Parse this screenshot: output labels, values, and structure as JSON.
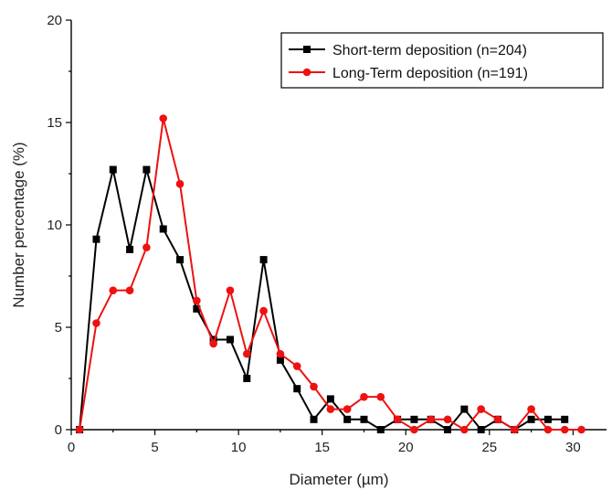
{
  "chart_data": {
    "type": "line",
    "title": "",
    "xlabel": "Diameter (µm)",
    "ylabel": "Number percentage (%)",
    "xlim": [
      0,
      32
    ],
    "ylim": [
      0,
      20
    ],
    "xticks": [
      0,
      5,
      10,
      15,
      20,
      25,
      30
    ],
    "yticks": [
      0,
      5,
      10,
      15,
      20
    ],
    "legend_position": "top-right",
    "grid": false,
    "series": [
      {
        "name": "Short-term deposition (n=204)",
        "color": "#000000",
        "marker": "square",
        "x": [
          0.5,
          1.5,
          2.5,
          3.5,
          4.5,
          5.5,
          6.5,
          7.5,
          8.5,
          9.5,
          10.5,
          11.5,
          12.5,
          13.5,
          14.5,
          15.5,
          16.5,
          17.5,
          18.5,
          19.5,
          20.5,
          21.5,
          22.5,
          23.5,
          24.5,
          25.5,
          26.5,
          27.5,
          28.5,
          29.5
        ],
        "y": [
          0,
          9.3,
          12.7,
          8.8,
          12.7,
          9.8,
          8.3,
          5.9,
          4.4,
          4.4,
          2.5,
          8.3,
          3.4,
          2.0,
          0.5,
          1.5,
          0.5,
          0.5,
          0,
          0.5,
          0.5,
          0.5,
          0,
          1.0,
          0,
          0.5,
          0,
          0.5,
          0.5,
          0.5
        ]
      },
      {
        "name": "Long-Term deposition (n=191)",
        "color": "#ee1111",
        "marker": "circle",
        "x": [
          0.5,
          1.5,
          2.5,
          3.5,
          4.5,
          5.5,
          6.5,
          7.5,
          8.5,
          9.5,
          10.5,
          11.5,
          12.5,
          13.5,
          14.5,
          15.5,
          16.5,
          17.5,
          18.5,
          19.5,
          20.5,
          21.5,
          22.5,
          23.5,
          24.5,
          25.5,
          26.5,
          27.5,
          28.5,
          29.5,
          30.5
        ],
        "y": [
          0,
          5.2,
          6.8,
          6.8,
          8.9,
          15.2,
          12.0,
          6.3,
          4.2,
          6.8,
          3.7,
          5.8,
          3.7,
          3.1,
          2.1,
          1.0,
          1.0,
          1.6,
          1.6,
          0.5,
          0,
          0.5,
          0.5,
          0,
          1.0,
          0.5,
          0,
          1.0,
          0,
          0,
          0
        ]
      }
    ]
  }
}
